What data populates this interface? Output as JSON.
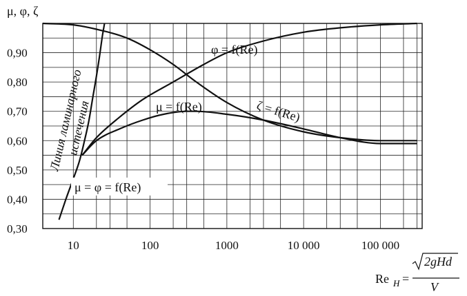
{
  "chart_data": {
    "type": "line",
    "ylabel": "μ, φ, ζ",
    "y_ticks": [
      "0,30",
      "0,40",
      "0,50",
      "0,60",
      "0,70",
      "0,80",
      "0,90"
    ],
    "x_ticks": [
      "10",
      "100",
      "1000",
      "10 000",
      "100 000"
    ],
    "x_scale": "log",
    "ylim": [
      0.3,
      1.0
    ],
    "xlim": [
      4,
      350000
    ],
    "grid": true,
    "series": [
      {
        "name": "φ = f(Re)",
        "x": [
          13,
          20,
          40,
          80,
          200,
          500,
          1000,
          3000,
          10000,
          30000,
          100000,
          300000
        ],
        "y": [
          0.55,
          0.61,
          0.68,
          0.74,
          0.8,
          0.86,
          0.9,
          0.94,
          0.97,
          0.985,
          0.995,
          1.0
        ]
      },
      {
        "name": "ζ = f(Re)",
        "x": [
          4,
          10,
          20,
          50,
          100,
          200,
          400,
          1000,
          3000,
          10000,
          30000,
          100000,
          300000
        ],
        "y": [
          1.0,
          0.995,
          0.98,
          0.95,
          0.91,
          0.86,
          0.8,
          0.73,
          0.67,
          0.63,
          0.61,
          0.6,
          0.6
        ]
      },
      {
        "name": "μ = f(Re)",
        "x": [
          13,
          20,
          40,
          80,
          150,
          300,
          400,
          1000,
          3000,
          10000,
          30000,
          100000,
          300000
        ],
        "y": [
          0.55,
          0.6,
          0.64,
          0.67,
          0.69,
          0.7,
          0.7,
          0.69,
          0.67,
          0.64,
          0.61,
          0.59,
          0.59
        ]
      },
      {
        "name": "Линия ламинарного истечения",
        "x": [
          6.5,
          8,
          10,
          12,
          14,
          16,
          18,
          20,
          22,
          24,
          25.5
        ],
        "y": [
          0.33,
          0.4,
          0.47,
          0.53,
          0.6,
          0.67,
          0.75,
          0.82,
          0.89,
          0.96,
          1.0
        ]
      }
    ],
    "annotations": {
      "phi": "φ = f(Re)",
      "zeta": "ζ = f(Re)",
      "mu": "μ = f(Re)",
      "mu_phi": "μ = φ = f(Re)",
      "laminar_line1": "Линия ламинарного",
      "laminar_line2": "истечения"
    },
    "formula": {
      "lhs": "Re",
      "lhs_sub": "H",
      "numerator": "2gHd",
      "denominator": "V"
    }
  }
}
